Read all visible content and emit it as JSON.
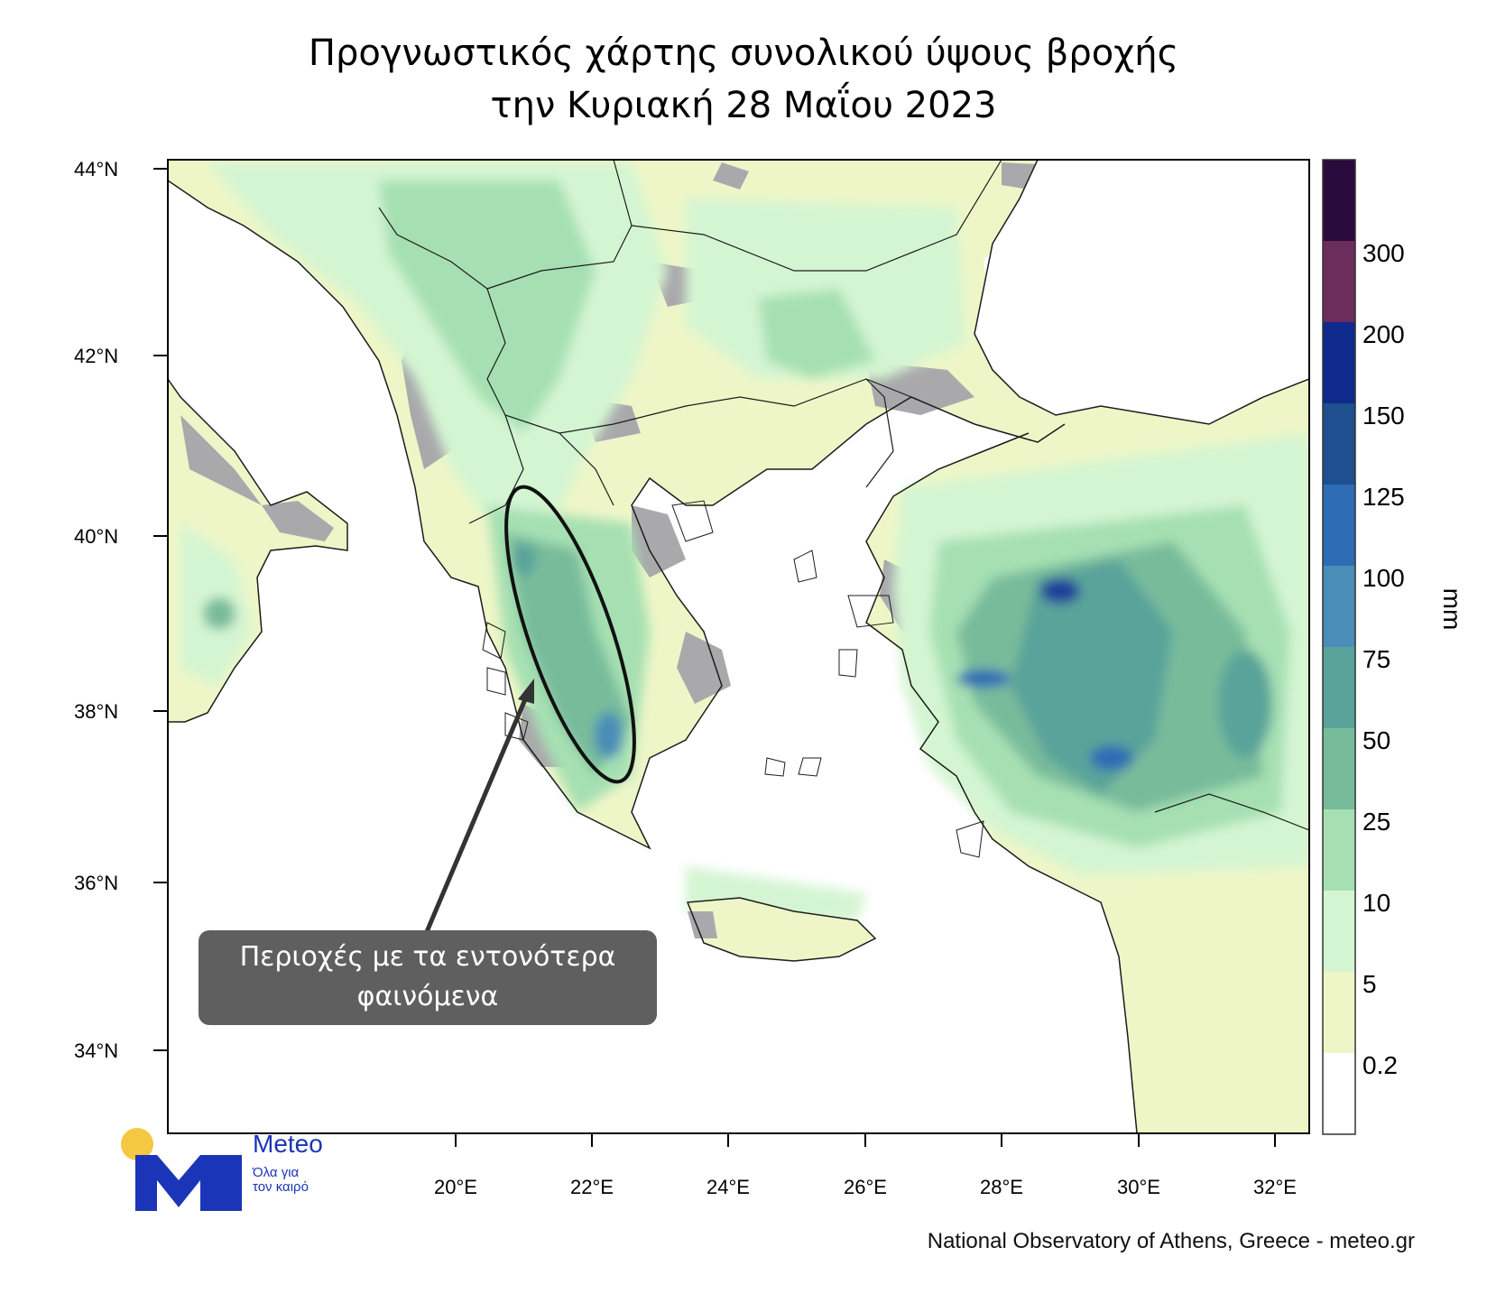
{
  "title_line1": "Προγνωστικός χάρτης συνολικού ύψους βροχής",
  "title_line2": "την Κυριακή 28 Μαΐου 2023",
  "lat_labels": [
    "44°N",
    "42°N",
    "40°N",
    "38°N",
    "36°N",
    "34°N"
  ],
  "lon_labels": [
    "20°E",
    "22°E",
    "24°E",
    "26°E",
    "28°E",
    "30°E",
    "32°E"
  ],
  "colorbar": {
    "unit": "mm",
    "labels": [
      "300",
      "200",
      "150",
      "125",
      "100",
      "75",
      "50",
      "25",
      "10",
      "5",
      "0.2"
    ],
    "colors": [
      "#2b0a3d",
      "#6b2d5c",
      "#0f2a8c",
      "#1e4f8f",
      "#2e6cb5",
      "#4a8db8",
      "#5aa39a",
      "#78bb9b",
      "#a6e0b2",
      "#d4f5d2",
      "#eef6c8",
      "#ffffff"
    ]
  },
  "callout": {
    "line1": "Περιοχές με τα εντονότερα",
    "line2": "φαινόμενα"
  },
  "credit": "National Observatory of Athens, Greece - meteo.gr",
  "logo": {
    "brand": "Meteo",
    "tagline_line1": "Όλα για",
    "tagline_line2": "τον καιρό",
    "colors": {
      "blue": "#1a35b8",
      "sun": "#f5c842"
    }
  },
  "map_colors": {
    "land_gray": "#a9a9ac",
    "light_rain": "#eef6c8",
    "rain_5": "#d4f5d2",
    "rain_10": "#a6e0b2",
    "rain_25": "#78bb9b",
    "rain_50": "#5aa39a",
    "rain_75": "#4a8db8",
    "rain_150": "#1e3f9a"
  }
}
